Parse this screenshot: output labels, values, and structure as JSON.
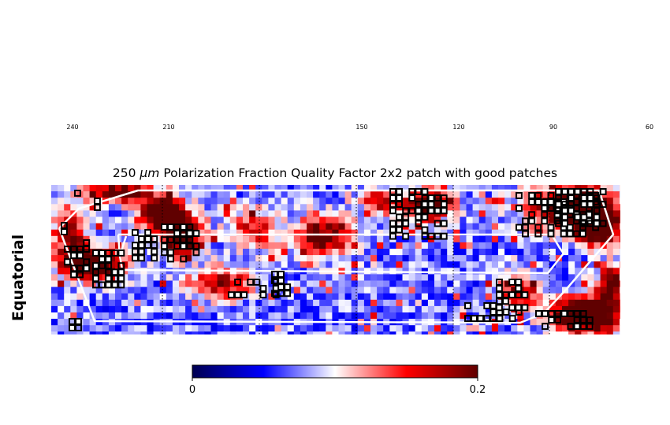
{
  "chart_data": {
    "type": "heatmap",
    "title_prefix": "250 ",
    "title_unit": "μm",
    "title_rest": " Polarization Fraction Quality Factor 2x2 patch with good patches",
    "ylabel": "Equatorial",
    "x_ticks": [
      "240",
      "210",
      "150",
      "120",
      "90",
      "60"
    ],
    "colorbar": {
      "min": 0,
      "max": 0.2,
      "tick_labels": [
        "0",
        "0.2"
      ],
      "colors": [
        "#000050",
        "#0000ff",
        "#ffffff",
        "#ff0000",
        "#600000"
      ]
    },
    "overlay": {
      "outline_color": "#ffffff",
      "good_patch_edge": "#000000",
      "good_patch_fill": "#ffffff",
      "grid_line_color": "#000000"
    }
  }
}
